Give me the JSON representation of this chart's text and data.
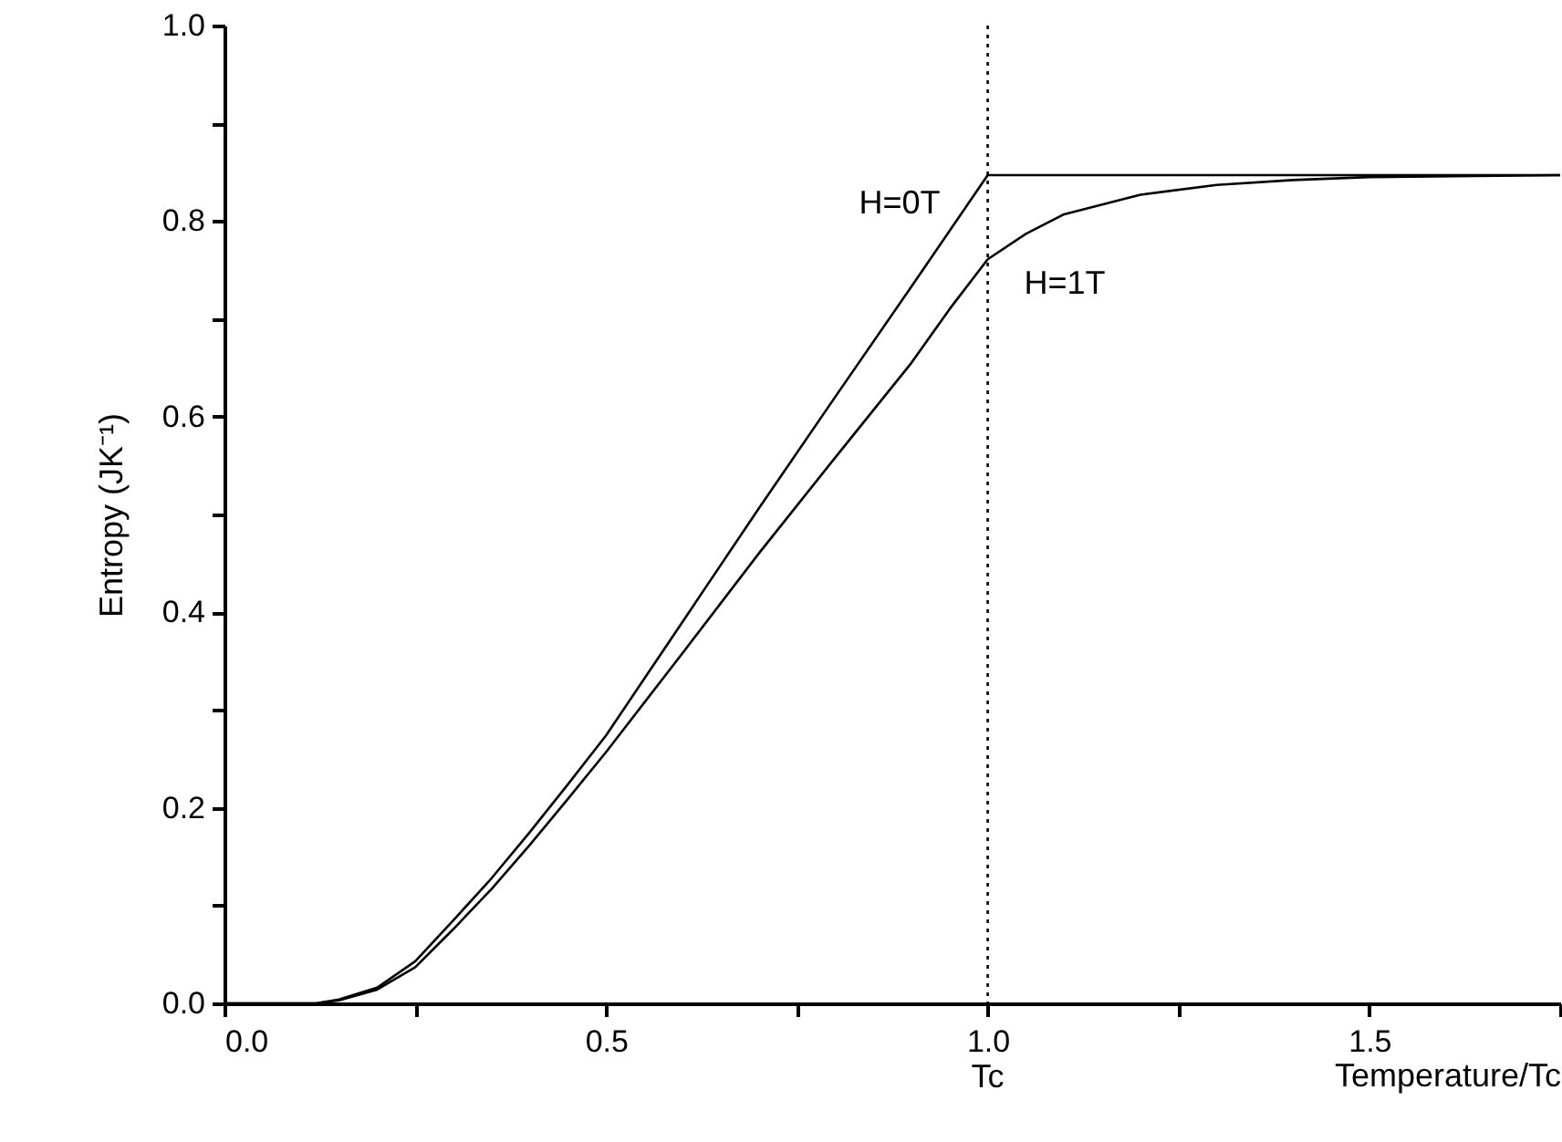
{
  "chart_data": {
    "type": "line",
    "xlabel": "Temperature/Tc",
    "ylabel": "Entropy (JK⁻¹)",
    "xlim": [
      0,
      1.75
    ],
    "ylim": [
      0,
      1.0
    ],
    "xticks": [
      {
        "value": 0,
        "label": "0.0"
      },
      {
        "value": 0.25,
        "label": null
      },
      {
        "value": 0.5,
        "label": "0.5"
      },
      {
        "value": 0.75,
        "label": null
      },
      {
        "value": 1.0,
        "label": "1.0"
      },
      {
        "value": 1.25,
        "label": null
      },
      {
        "value": 1.5,
        "label": "1.5"
      },
      {
        "value": 1.75,
        "label": null
      }
    ],
    "yticks": [
      {
        "value": 0,
        "label": "0.0"
      },
      {
        "value": 0.1,
        "label": null
      },
      {
        "value": 0.2,
        "label": "0.2"
      },
      {
        "value": 0.3,
        "label": null
      },
      {
        "value": 0.4,
        "label": "0.4"
      },
      {
        "value": 0.5,
        "label": null
      },
      {
        "value": 0.6,
        "label": "0.6"
      },
      {
        "value": 0.7,
        "label": null
      },
      {
        "value": 0.8,
        "label": "0.8"
      },
      {
        "value": 0.9,
        "label": null
      },
      {
        "value": 1.0,
        "label": "1.0"
      }
    ],
    "grid": false,
    "marker": "none",
    "line_style": "solid",
    "series": [
      {
        "name": "H=0T",
        "color": "#000000",
        "x": [
          0,
          0.12,
          0.15,
          0.2,
          0.25,
          0.3,
          0.35,
          0.4,
          0.45,
          0.5,
          0.6,
          0.7,
          0.8,
          0.9,
          1.0,
          1.25,
          1.5,
          1.75
        ],
        "values": [
          0,
          0,
          0.004,
          0.016,
          0.043,
          0.085,
          0.128,
          0.175,
          0.224,
          0.274,
          0.39,
          0.506,
          0.62,
          0.733,
          0.847,
          0.847,
          0.847,
          0.847
        ]
      },
      {
        "name": "H=1T",
        "color": "#000000",
        "x": [
          0,
          0.12,
          0.15,
          0.2,
          0.25,
          0.3,
          0.35,
          0.4,
          0.45,
          0.5,
          0.6,
          0.7,
          0.8,
          0.9,
          0.95,
          1.0,
          1.05,
          1.1,
          1.2,
          1.3,
          1.4,
          1.5,
          1.75
        ],
        "values": [
          0,
          0,
          0.003,
          0.014,
          0.037,
          0.076,
          0.117,
          0.162,
          0.209,
          0.257,
          0.358,
          0.46,
          0.558,
          0.655,
          0.71,
          0.761,
          0.787,
          0.807,
          0.827,
          0.837,
          0.842,
          0.845,
          0.847
        ]
      }
    ],
    "ref_lines": [
      {
        "axis": "x",
        "value": 1.0,
        "label": "Tc",
        "line_style": "dotted"
      }
    ]
  }
}
